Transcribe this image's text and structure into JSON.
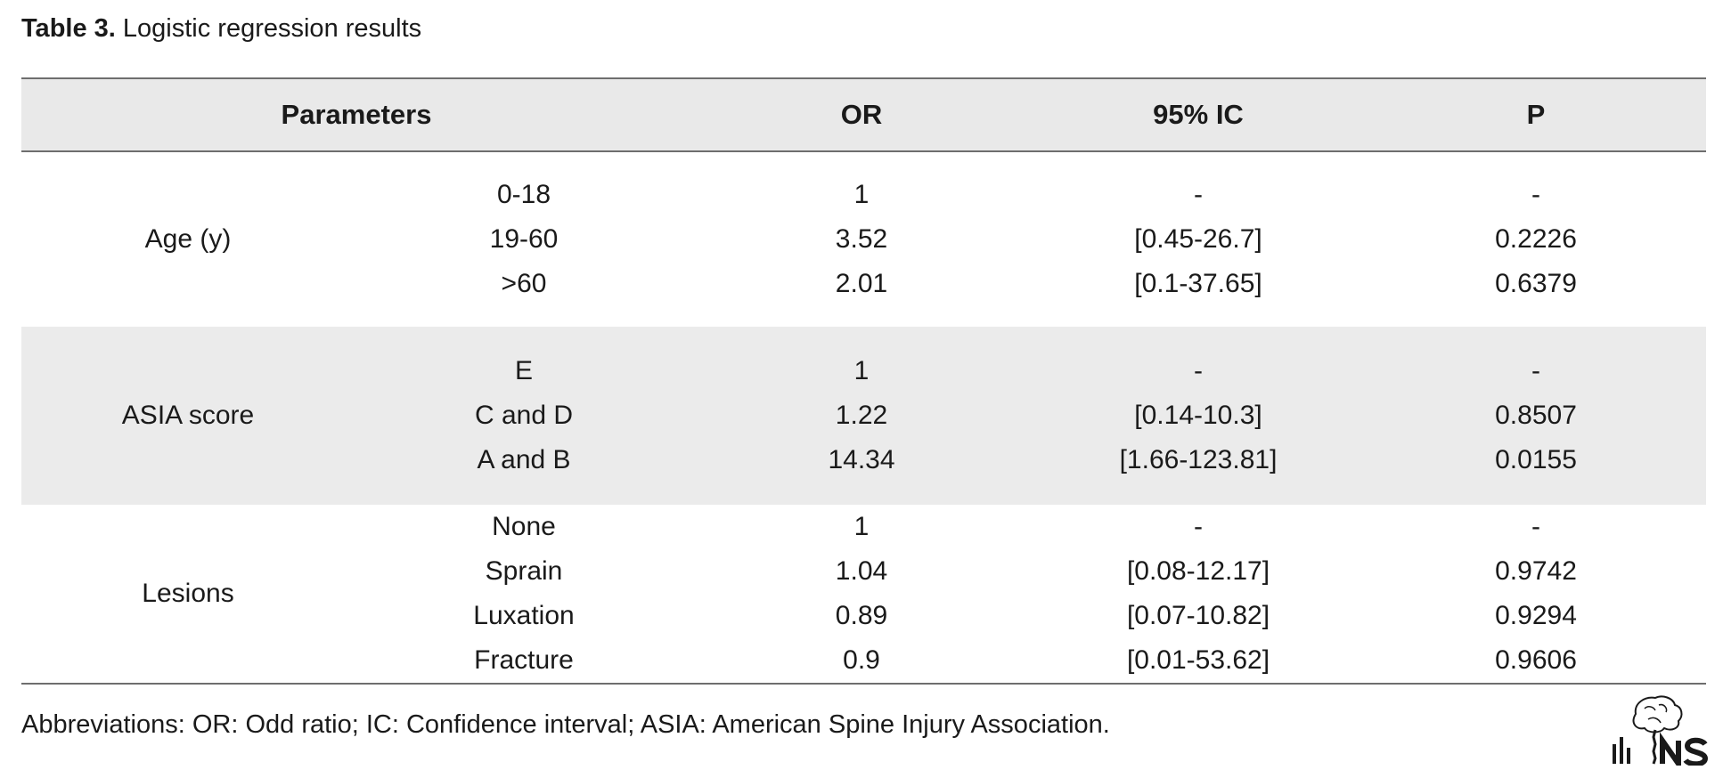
{
  "caption": {
    "label": "Table 3.",
    "text": "Logistic regression results"
  },
  "table": {
    "headers": {
      "parameters": "Parameters",
      "or": "OR",
      "ci": "95% IC",
      "p": "P"
    },
    "groups": [
      {
        "label": "Age (y)",
        "rows": [
          {
            "category": "0-18",
            "or": "1",
            "ci": "-",
            "p": "-"
          },
          {
            "category": "19-60",
            "or": "3.52",
            "ci": "[0.45-26.7]",
            "p": "0.2226"
          },
          {
            "category": ">60",
            "or": "2.01",
            "ci": "[0.1-37.65]",
            "p": "0.6379"
          }
        ]
      },
      {
        "label": "ASIA score",
        "rows": [
          {
            "category": "E",
            "or": "1",
            "ci": "-",
            "p": "-"
          },
          {
            "category": "C and D",
            "or": "1.22",
            "ci": "[0.14-10.3]",
            "p": "0.8507"
          },
          {
            "category": "A and B",
            "or": "14.34",
            "ci": "[1.66-123.81]",
            "p": "0.0155"
          }
        ]
      },
      {
        "label": "Lesions",
        "rows": [
          {
            "category": "None",
            "or": "1",
            "ci": "-",
            "p": "-"
          },
          {
            "category": "Sprain",
            "or": "1.04",
            "ci": "[0.08-12.17]",
            "p": "0.9742"
          },
          {
            "category": "Luxation",
            "or": "0.89",
            "ci": "[0.07-10.82]",
            "p": "0.9294"
          },
          {
            "category": "Fracture",
            "or": "0.9",
            "ci": "[0.01-53.62]",
            "p": "0.9606"
          }
        ]
      }
    ]
  },
  "footnote": "Abbreviations: OR: Odd ratio; IC: Confidence interval; ASIA: American Spine Injury Association.",
  "logo": {
    "icon": "journal-logo-icon",
    "text": "NS"
  },
  "colors": {
    "header_bg": "#e9e9e9",
    "shaded_bg": "#ebebeb",
    "rule": "#6e6e6e"
  }
}
